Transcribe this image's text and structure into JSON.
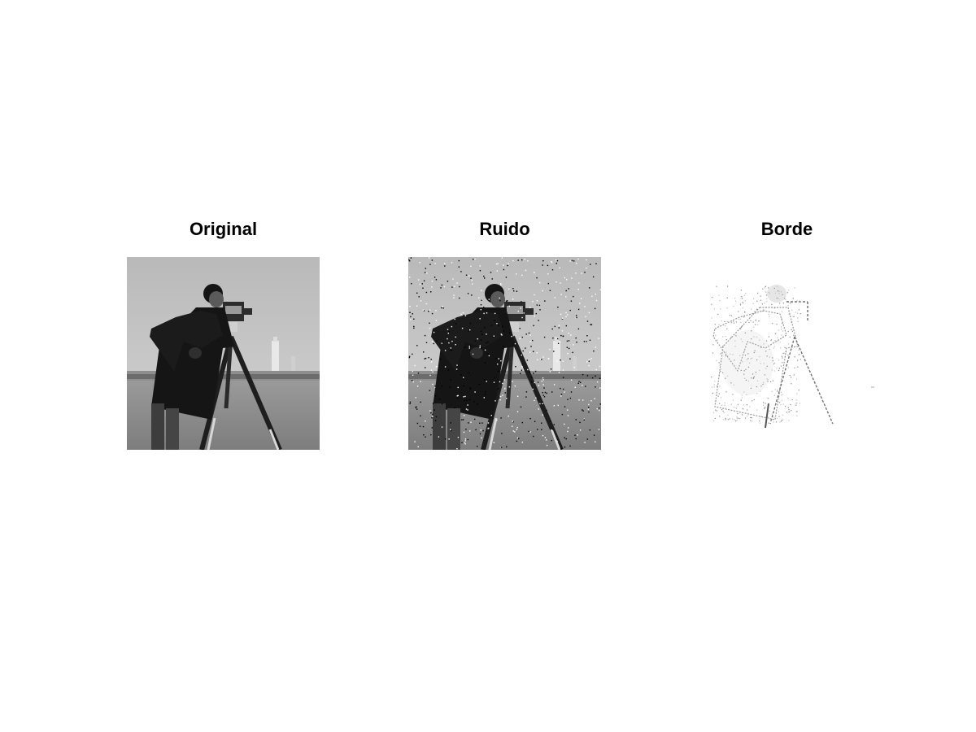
{
  "panels": [
    {
      "title": "Original",
      "variant": "original"
    },
    {
      "title": "Ruido",
      "variant": "noise"
    },
    {
      "title": "Borde",
      "variant": "edge"
    }
  ]
}
